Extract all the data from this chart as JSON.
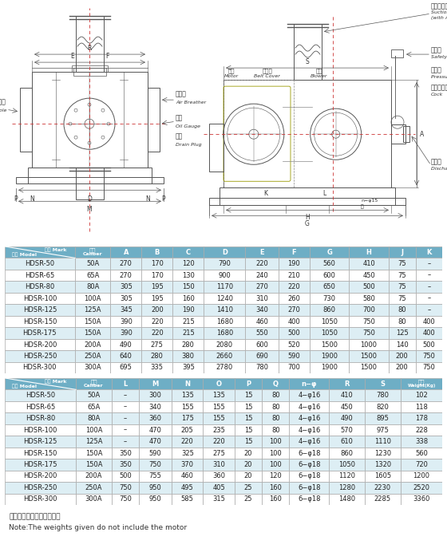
{
  "table1_header_labels": [
    "记号 Mark",
    "型式 Model",
    "口径",
    "Caliber",
    "A",
    "B",
    "C",
    "D",
    "E",
    "F",
    "G",
    "H",
    "J",
    "K"
  ],
  "table1_cols": [
    "A",
    "B",
    "C",
    "D",
    "E",
    "F",
    "G",
    "H",
    "J",
    "K"
  ],
  "table1_data": [
    [
      "HDSR-50",
      "50A",
      "270",
      "170",
      "120",
      "790",
      "220",
      "190",
      "560",
      "410",
      "75",
      "–"
    ],
    [
      "HDSR-65",
      "65A",
      "270",
      "170",
      "130",
      "900",
      "240",
      "210",
      "600",
      "450",
      "75",
      "–"
    ],
    [
      "HDSR-80",
      "80A",
      "305",
      "195",
      "150",
      "1170",
      "270",
      "220",
      "650",
      "500",
      "75",
      "–"
    ],
    [
      "HDSR-100",
      "100A",
      "305",
      "195",
      "160",
      "1240",
      "310",
      "260",
      "730",
      "580",
      "75",
      "–"
    ],
    [
      "HDSR-125",
      "125A",
      "345",
      "200",
      "190",
      "1410",
      "340",
      "270",
      "860",
      "700",
      "80",
      "–"
    ],
    [
      "HDSR-150",
      "150A",
      "390",
      "220",
      "215",
      "1680",
      "460",
      "400",
      "1050",
      "750",
      "80",
      "400"
    ],
    [
      "HDSR-175",
      "150A",
      "390",
      "220",
      "215",
      "1680",
      "550",
      "500",
      "1050",
      "750",
      "125",
      "400"
    ],
    [
      "HDSR-200",
      "200A",
      "490",
      "275",
      "280",
      "2080",
      "600",
      "520",
      "1500",
      "1000",
      "140",
      "500"
    ],
    [
      "HDSR-250",
      "250A",
      "640",
      "280",
      "380",
      "2660",
      "690",
      "590",
      "1900",
      "1500",
      "200",
      "750"
    ],
    [
      "HDSR-300",
      "300A",
      "695",
      "335",
      "395",
      "2780",
      "780",
      "700",
      "1900",
      "1500",
      "200",
      "750"
    ]
  ],
  "table2_cols": [
    "L",
    "M",
    "N",
    "O",
    "P",
    "Q",
    "n−φ",
    "R",
    "S",
    "重量\nWeight(Kg)"
  ],
  "table2_data": [
    [
      "HDSR-50",
      "50A",
      "–",
      "300",
      "135",
      "135",
      "15",
      "80",
      "4−φ16",
      "410",
      "780",
      "102"
    ],
    [
      "HDSR-65",
      "65A",
      "–",
      "340",
      "155",
      "155",
      "15",
      "80",
      "4−φ16",
      "450",
      "820",
      "118"
    ],
    [
      "HDSR-80",
      "80A",
      "–",
      "360",
      "175",
      "155",
      "15",
      "80",
      "4−φ16",
      "490",
      "895",
      "178"
    ],
    [
      "HDSR-100",
      "100A",
      "–",
      "470",
      "205",
      "235",
      "15",
      "80",
      "4−φ16",
      "570",
      "975",
      "228"
    ],
    [
      "HDSR-125",
      "125A",
      "–",
      "470",
      "220",
      "220",
      "15",
      "100",
      "4−φ16",
      "610",
      "1110",
      "338"
    ],
    [
      "HDSR-150",
      "150A",
      "350",
      "590",
      "325",
      "275",
      "20",
      "100",
      "6−φ18",
      "860",
      "1230",
      "560"
    ],
    [
      "HDSR-175",
      "150A",
      "350",
      "750",
      "370",
      "310",
      "20",
      "100",
      "6−φ18",
      "1050",
      "1320",
      "720"
    ],
    [
      "HDSR-200",
      "200A",
      "500",
      "755",
      "460",
      "360",
      "20",
      "120",
      "6−φ18",
      "1120",
      "1605",
      "1200"
    ],
    [
      "HDSR-250",
      "250A",
      "750",
      "950",
      "495",
      "405",
      "25",
      "160",
      "6−φ18",
      "1280",
      "2230",
      "2520"
    ],
    [
      "HDSR-300",
      "300A",
      "750",
      "950",
      "585",
      "315",
      "25",
      "160",
      "6−φ18",
      "1480",
      "2285",
      "3360"
    ]
  ],
  "note_zh": "注：重量中不包括电机重量",
  "note_en": "Note:The weights given do not include the motor",
  "header_bg": "#6eaec5",
  "alt_row_bg": "#ddeef4",
  "white_row_bg": "#ffffff",
  "border_color": "#aaaaaa"
}
